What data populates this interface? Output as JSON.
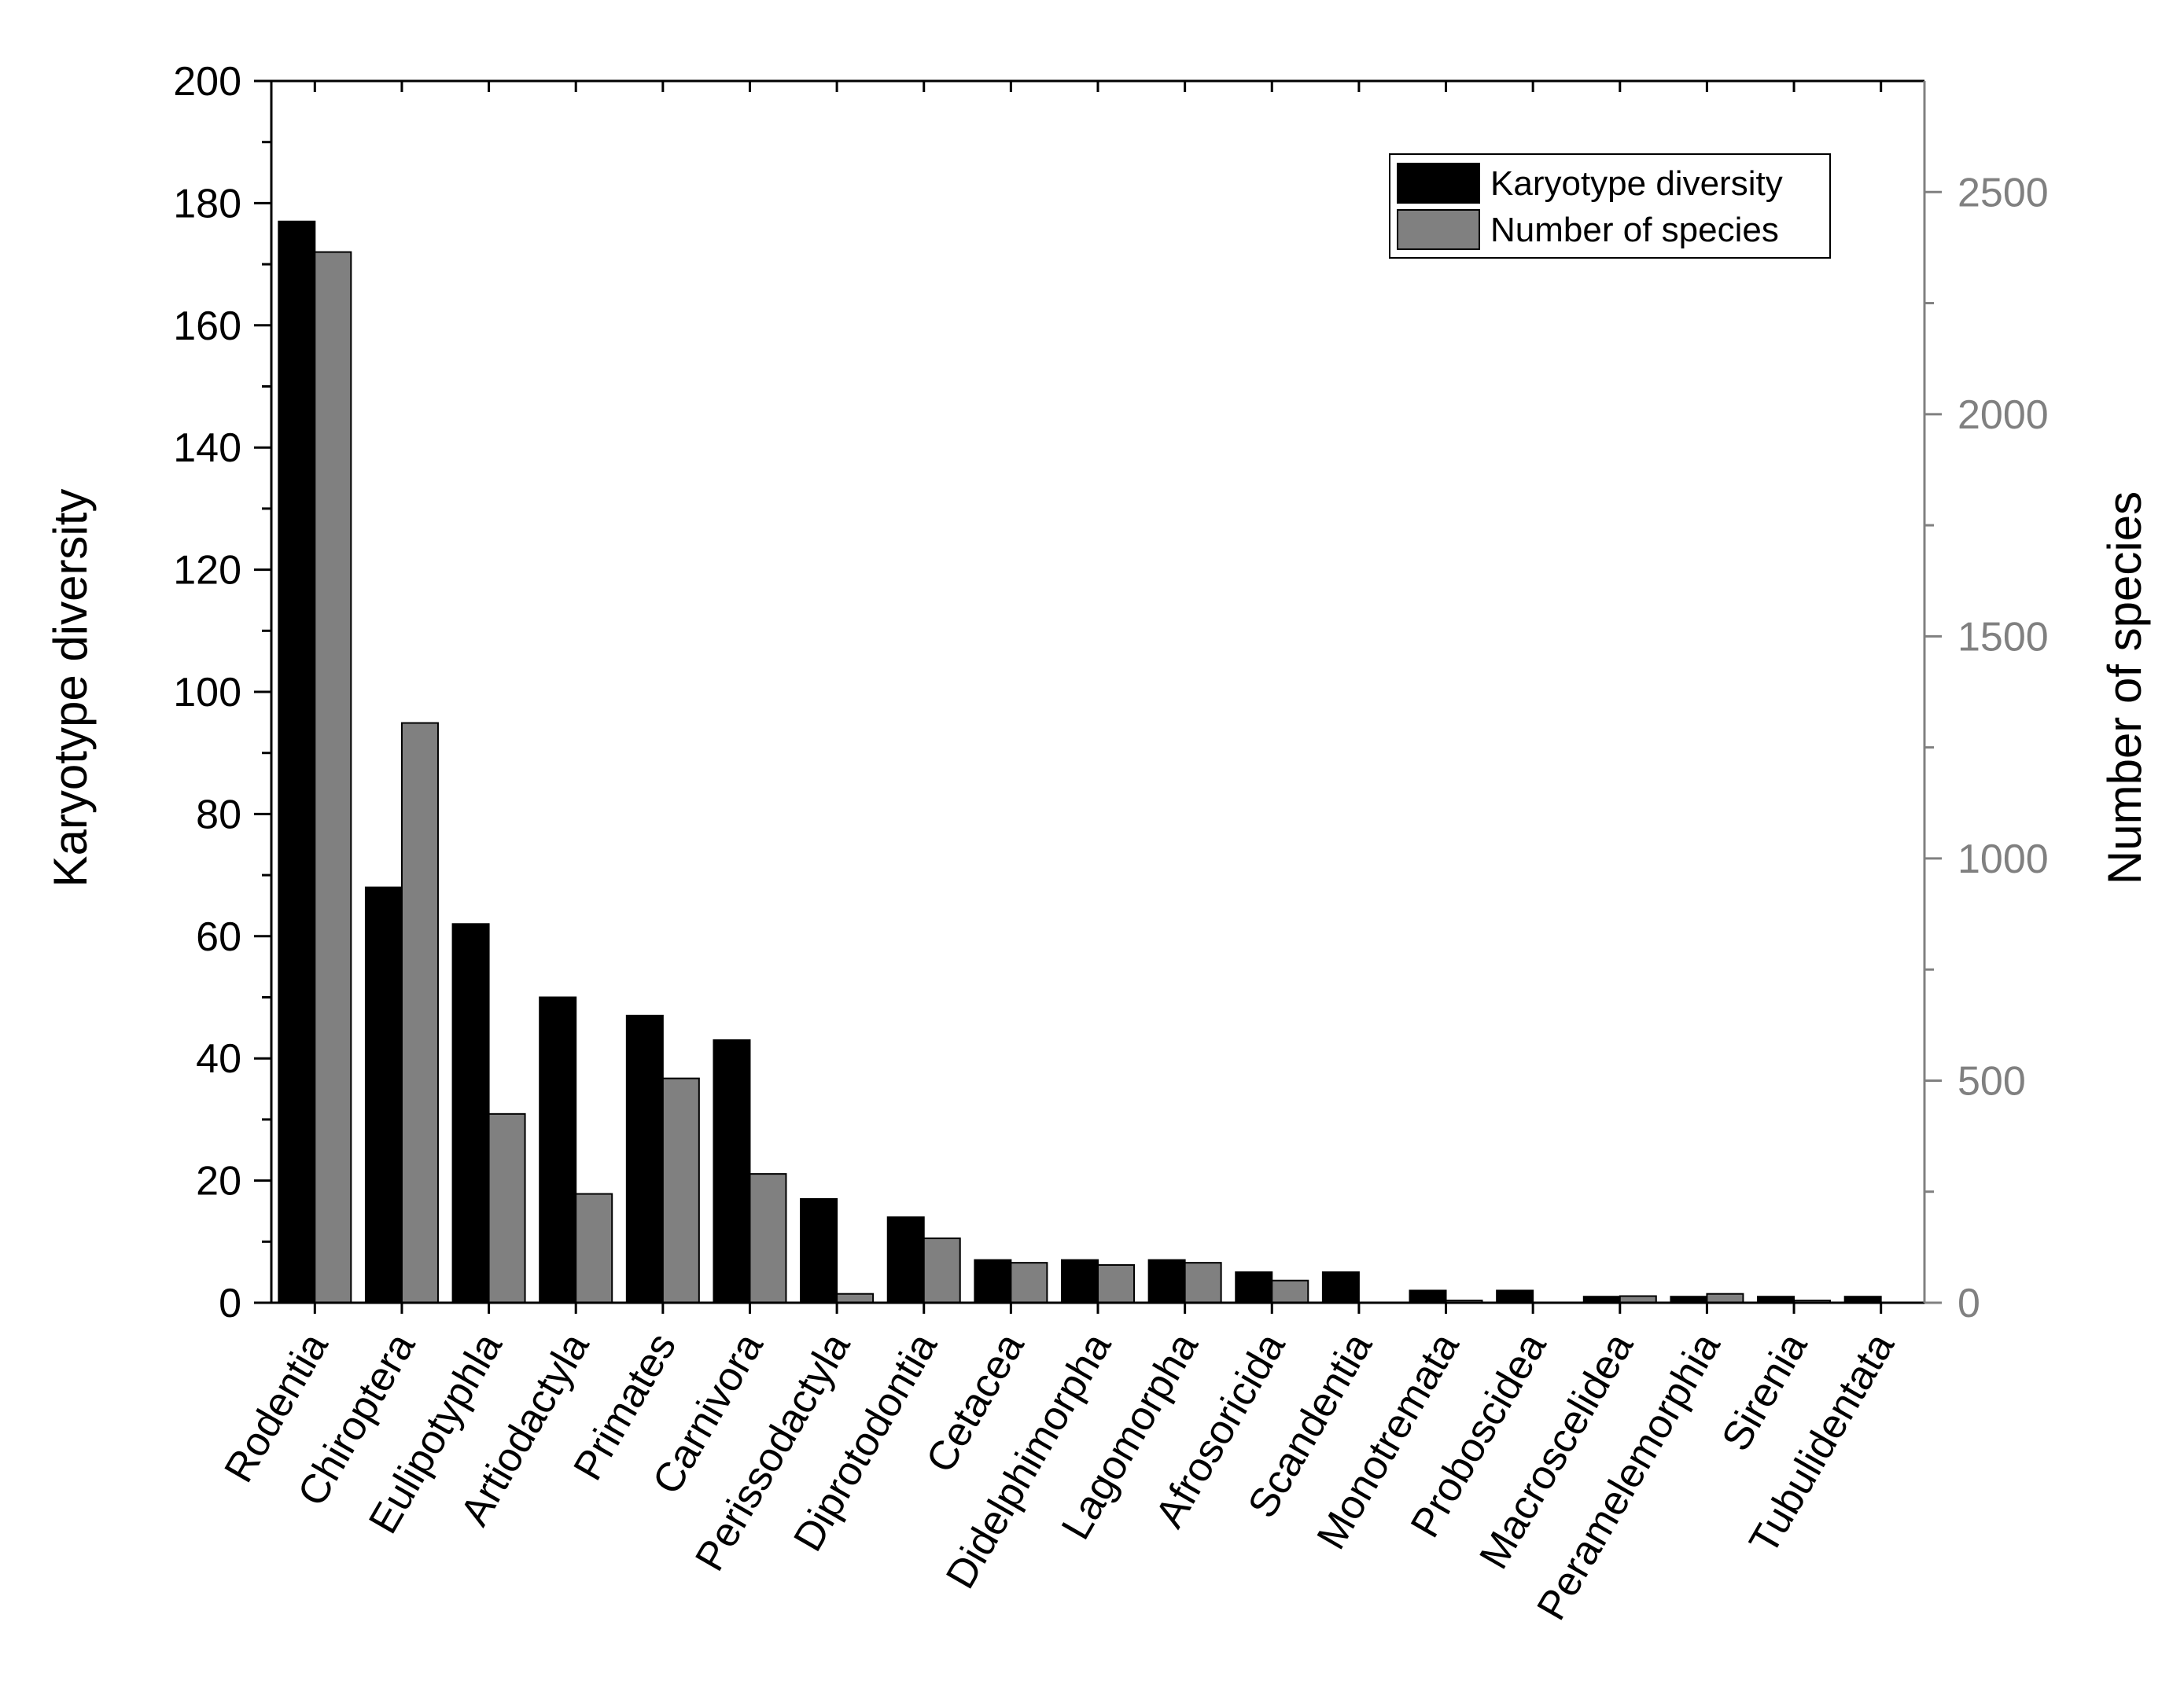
{
  "chart_data": {
    "type": "bar",
    "categories": [
      "Rodentia",
      "Chiroptera",
      "Eulipotyphla",
      "Artiodactyla",
      "Primates",
      "Carnivora",
      "Perissodactyla",
      "Diprotodontia",
      "Cetacea",
      "Didelphimorpha",
      "Lagomorpha",
      "Afrosoricida",
      "Scandentia",
      "Monotremata",
      "Proboscidea",
      "Macroscelidea",
      "Peramelemorphia",
      "Sirenia",
      "Tubulidentata"
    ],
    "series": [
      {
        "name": "Karyotype diversity",
        "axis": "left",
        "color": "#000000",
        "values": [
          177,
          68,
          62,
          50,
          47,
          43,
          17,
          14,
          7,
          7,
          7,
          5,
          5,
          2,
          2,
          1,
          1,
          1,
          1
        ]
      },
      {
        "name": "Number of species",
        "axis": "right",
        "color": "#808080",
        "values": [
          2365,
          1305,
          425,
          245,
          505,
          290,
          20,
          145,
          90,
          85,
          90,
          50,
          0,
          5,
          0,
          15,
          20,
          5,
          0
        ]
      }
    ],
    "ylabel": "Karyotype diversity",
    "ylim": [
      0,
      200
    ],
    "yticks": [
      0,
      20,
      40,
      60,
      80,
      100,
      120,
      140,
      160,
      180,
      200
    ],
    "y2label": "Number of species",
    "y2lim": [
      0,
      2750
    ],
    "y2ticks": [
      0,
      500,
      1000,
      1500,
      2000,
      2500
    ],
    "axis_colors": {
      "left": "#000000",
      "right": "#808080"
    },
    "grid": false,
    "legend_position": "top-right"
  }
}
